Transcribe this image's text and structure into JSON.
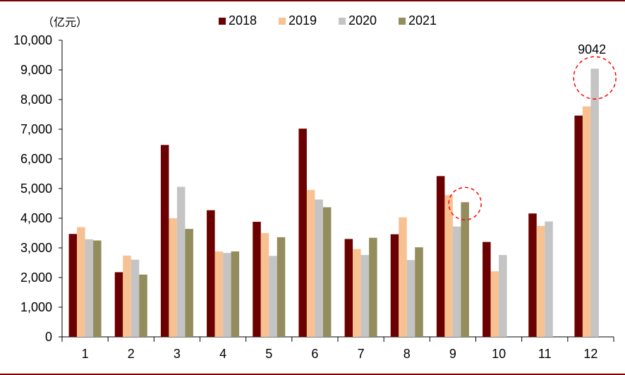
{
  "chart_data": {
    "type": "bar",
    "title": "",
    "unit_label": "（亿元）",
    "xlabel": "",
    "ylabel": "",
    "ylim": [
      0,
      10000
    ],
    "yticks": [
      0,
      1000,
      2000,
      3000,
      4000,
      5000,
      6000,
      7000,
      8000,
      9000,
      10000
    ],
    "ytick_labels": [
      "0",
      "1,000",
      "2,000",
      "3,000",
      "4,000",
      "5,000",
      "6,000",
      "7,000",
      "8,000",
      "9,000",
      "10,000"
    ],
    "categories": [
      "1",
      "2",
      "3",
      "4",
      "5",
      "6",
      "7",
      "8",
      "9",
      "10",
      "11",
      "12"
    ],
    "grid": false,
    "legend_position": "top",
    "series": [
      {
        "name": "2018",
        "color": "#6b0000",
        "values": [
          3470,
          2180,
          6470,
          4270,
          3880,
          7020,
          3300,
          3460,
          5420,
          3200,
          4160,
          7460
        ]
      },
      {
        "name": "2019",
        "color": "#f8c192",
        "values": [
          3700,
          2740,
          4000,
          2880,
          3500,
          4950,
          2960,
          4030,
          4780,
          2210,
          3740,
          7770
        ]
      },
      {
        "name": "2020",
        "color": "#c4c4c4",
        "values": [
          3290,
          2600,
          5060,
          2830,
          2730,
          4630,
          2760,
          2590,
          3720,
          2760,
          3890,
          9042
        ]
      },
      {
        "name": "2021",
        "color": "#938c5c",
        "values": [
          3250,
          2100,
          3640,
          2880,
          3360,
          4370,
          3340,
          3020,
          4540,
          null,
          null,
          null
        ]
      }
    ],
    "annotations": [
      {
        "text": "9042",
        "category": "12",
        "series": "2020",
        "highlight": "dashed-circle"
      },
      {
        "text": "",
        "category": "9",
        "series": "2021",
        "highlight": "dashed-circle"
      }
    ],
    "highlight_color": "#ff0000"
  }
}
